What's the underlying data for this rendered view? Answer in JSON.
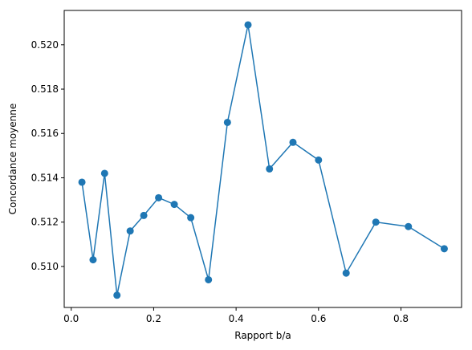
{
  "chart_data": {
    "type": "line",
    "title": "",
    "xlabel": "Rapport b/a",
    "ylabel": "Concordance moyenne",
    "xlim": [
      -0.017,
      0.947
    ],
    "ylim": [
      0.50815,
      0.52155
    ],
    "xticks": [
      0.0,
      0.2,
      0.4,
      0.6,
      0.8
    ],
    "xtick_labels": [
      "0.0",
      "0.2",
      "0.4",
      "0.6",
      "0.8"
    ],
    "yticks": [
      0.51,
      0.512,
      0.514,
      0.516,
      0.518,
      0.52
    ],
    "ytick_labels": [
      "0.510",
      "0.512",
      "0.514",
      "0.516",
      "0.518",
      "0.520"
    ],
    "grid": false,
    "legend": "none",
    "marker": "circle",
    "color": "#1f77b4",
    "series": [
      {
        "x": [
          0.026,
          0.053,
          0.081,
          0.111,
          0.143,
          0.176,
          0.212,
          0.25,
          0.29,
          0.333,
          0.379,
          0.429,
          0.481,
          0.538,
          0.6,
          0.667,
          0.739,
          0.818,
          0.905
        ],
        "y": [
          0.5138,
          0.5103,
          0.5142,
          0.5087,
          0.5116,
          0.5123,
          0.5131,
          0.5128,
          0.5122,
          0.5094,
          0.5165,
          0.5209,
          0.5144,
          0.5156,
          0.5148,
          0.5097,
          0.512,
          0.5118,
          0.5108
        ]
      }
    ]
  }
}
